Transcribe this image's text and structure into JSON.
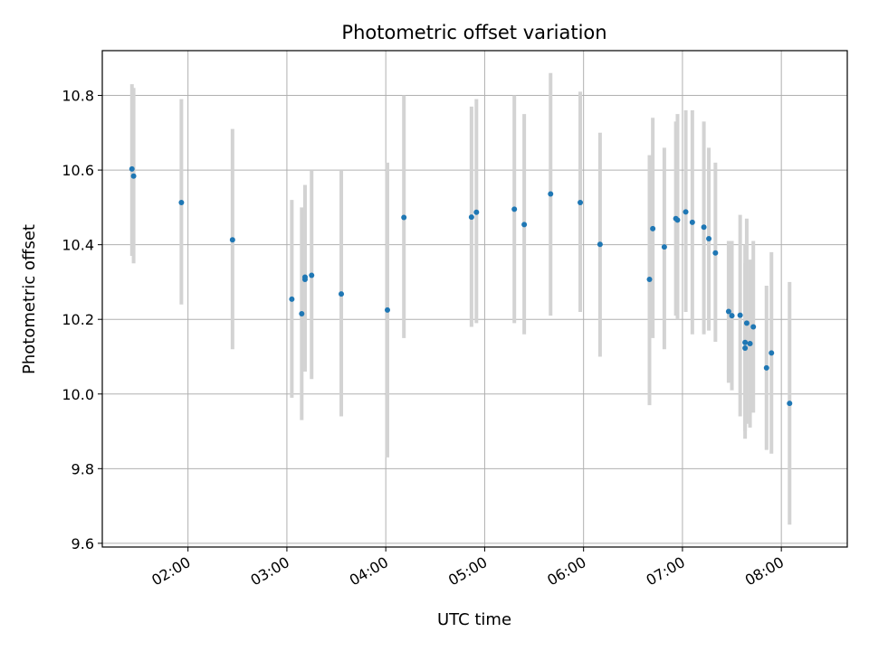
{
  "chart_data": {
    "type": "scatter",
    "title": "Photometric offset variation",
    "xlabel": "UTC time",
    "ylabel": "Photometric offset",
    "x_unit": "hours UTC",
    "xlim": [
      "01:08",
      "08:40"
    ],
    "ylim": [
      9.59,
      10.92
    ],
    "x_ticks": [
      "02:00",
      "03:00",
      "04:00",
      "05:00",
      "06:00",
      "07:00",
      "08:00"
    ],
    "y_ticks": [
      "9.6",
      "9.8",
      "10.0",
      "10.2",
      "10.4",
      "10.6",
      "10.8"
    ],
    "grid": true,
    "legend": "none",
    "series": [
      {
        "marker_color": "#1f77b4",
        "errorbar_color": "#d3d3d3",
        "points": [
          {
            "x": "01:26",
            "y": 10.603,
            "ylo": 10.37,
            "yhi": 10.83
          },
          {
            "x": "01:27",
            "y": 10.584,
            "ylo": 10.35,
            "yhi": 10.82
          },
          {
            "x": "01:56",
            "y": 10.513,
            "ylo": 10.24,
            "yhi": 10.79
          },
          {
            "x": "02:27",
            "y": 10.413,
            "ylo": 10.12,
            "yhi": 10.71
          },
          {
            "x": "03:03",
            "y": 10.254,
            "ylo": 9.99,
            "yhi": 10.52
          },
          {
            "x": "03:09",
            "y": 10.215,
            "ylo": 9.93,
            "yhi": 10.5
          },
          {
            "x": "03:11",
            "y": 10.307,
            "ylo": 10.06,
            "yhi": 10.56
          },
          {
            "x": "03:11",
            "y": 10.313,
            "ylo": 10.07,
            "yhi": 10.56
          },
          {
            "x": "03:15",
            "y": 10.318,
            "ylo": 10.04,
            "yhi": 10.6
          },
          {
            "x": "03:33",
            "y": 10.268,
            "ylo": 9.94,
            "yhi": 10.6
          },
          {
            "x": "04:01",
            "y": 10.225,
            "ylo": 9.83,
            "yhi": 10.62
          },
          {
            "x": "04:11",
            "y": 10.473,
            "ylo": 10.15,
            "yhi": 10.8
          },
          {
            "x": "04:52",
            "y": 10.474,
            "ylo": 10.18,
            "yhi": 10.77
          },
          {
            "x": "04:55",
            "y": 10.487,
            "ylo": 10.19,
            "yhi": 10.79
          },
          {
            "x": "05:18",
            "y": 10.495,
            "ylo": 10.19,
            "yhi": 10.8
          },
          {
            "x": "05:24",
            "y": 10.454,
            "ylo": 10.16,
            "yhi": 10.75
          },
          {
            "x": "05:40",
            "y": 10.536,
            "ylo": 10.21,
            "yhi": 10.86
          },
          {
            "x": "05:58",
            "y": 10.513,
            "ylo": 10.22,
            "yhi": 10.81
          },
          {
            "x": "06:10",
            "y": 10.401,
            "ylo": 10.1,
            "yhi": 10.7
          },
          {
            "x": "06:40",
            "y": 10.307,
            "ylo": 9.97,
            "yhi": 10.64
          },
          {
            "x": "06:42",
            "y": 10.443,
            "ylo": 10.15,
            "yhi": 10.74
          },
          {
            "x": "06:49",
            "y": 10.394,
            "ylo": 10.12,
            "yhi": 10.66
          },
          {
            "x": "06:56",
            "y": 10.47,
            "ylo": 10.21,
            "yhi": 10.73
          },
          {
            "x": "06:57",
            "y": 10.466,
            "ylo": 10.2,
            "yhi": 10.75
          },
          {
            "x": "07:02",
            "y": 10.488,
            "ylo": 10.22,
            "yhi": 10.76
          },
          {
            "x": "07:06",
            "y": 10.46,
            "ylo": 10.16,
            "yhi": 10.76
          },
          {
            "x": "07:13",
            "y": 10.447,
            "ylo": 10.16,
            "yhi": 10.73
          },
          {
            "x": "07:16",
            "y": 10.416,
            "ylo": 10.17,
            "yhi": 10.66
          },
          {
            "x": "07:20",
            "y": 10.378,
            "ylo": 10.14,
            "yhi": 10.62
          },
          {
            "x": "07:28",
            "y": 10.221,
            "ylo": 10.03,
            "yhi": 10.41
          },
          {
            "x": "07:30",
            "y": 10.21,
            "ylo": 10.01,
            "yhi": 10.41
          },
          {
            "x": "07:35",
            "y": 10.211,
            "ylo": 9.94,
            "yhi": 10.48
          },
          {
            "x": "07:38",
            "y": 10.138,
            "ylo": 9.88,
            "yhi": 10.4
          },
          {
            "x": "07:38",
            "y": 10.123,
            "ylo": 9.9,
            "yhi": 10.35
          },
          {
            "x": "07:39",
            "y": 10.19,
            "ylo": 9.92,
            "yhi": 10.47
          },
          {
            "x": "07:41",
            "y": 10.135,
            "ylo": 9.91,
            "yhi": 10.36
          },
          {
            "x": "07:43",
            "y": 10.18,
            "ylo": 9.95,
            "yhi": 10.41
          },
          {
            "x": "07:51",
            "y": 10.07,
            "ylo": 9.85,
            "yhi": 10.29
          },
          {
            "x": "07:54",
            "y": 10.11,
            "ylo": 9.84,
            "yhi": 10.38
          },
          {
            "x": "08:05",
            "y": 9.975,
            "ylo": 9.65,
            "yhi": 10.3
          }
        ]
      }
    ]
  }
}
